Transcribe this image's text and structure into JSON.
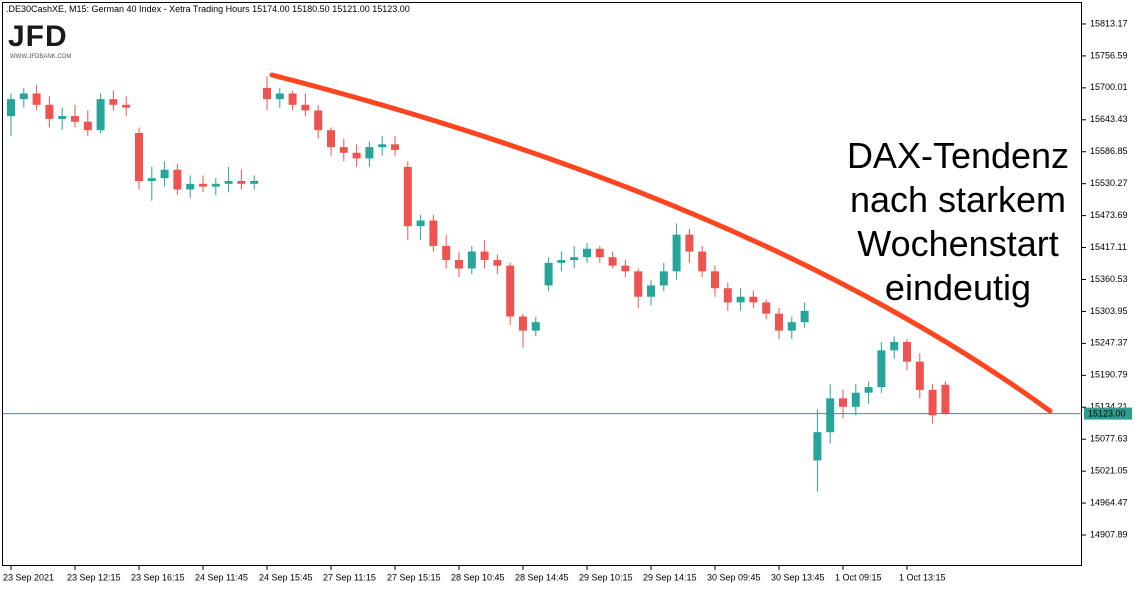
{
  "chart_data": {
    "type": "candlestick",
    "header": ".DE30CashXE, M15:  German 40 Index  - Xetra Trading Hours  15174.00 15180.50 15121.00 15123.00",
    "logo": "JFD",
    "logo_url": "WWW.JFDBANK.COM",
    "annotation": [
      "DAX-Tendenz",
      "nach starkem",
      "Wochenstart",
      "eindeutig"
    ],
    "up_color": "#26a69a",
    "down_color": "#ef5350",
    "ylim": [
      14853,
      15845
    ],
    "yticks": [
      15813.17,
      15756.59,
      15700.01,
      15643.43,
      15586.85,
      15530.27,
      15473.69,
      15417.11,
      15360.53,
      15303.95,
      15247.37,
      15190.79,
      15134.21,
      15077.63,
      15021.05,
      14964.47,
      14907.89
    ],
    "price_line": {
      "value": 15123,
      "label": "15123.00"
    },
    "categories": [
      "23 Sep 2021",
      null,
      null,
      null,
      null,
      "23 Sep 12:15",
      null,
      null,
      null,
      null,
      "23 Sep 16:15",
      null,
      null,
      null,
      null,
      "24 Sep 11:45",
      null,
      null,
      null,
      null,
      "24 Sep 15:45",
      null,
      null,
      null,
      null,
      "27 Sep 11:15",
      null,
      null,
      null,
      null,
      "27 Sep 15:15",
      null,
      null,
      null,
      null,
      "28 Sep 10:45",
      null,
      null,
      null,
      null,
      "28 Sep 14:45",
      null,
      null,
      null,
      null,
      "29 Sep 10:15",
      null,
      null,
      null,
      null,
      "29 Sep 14:15",
      null,
      null,
      null,
      null,
      "30 Sep 09:45",
      null,
      null,
      null,
      null,
      "30 Sep 13:45",
      null,
      null,
      null,
      null,
      "1 Oct 09:15",
      null,
      null,
      null,
      null,
      "1 Oct 13:15",
      null,
      null,
      null
    ],
    "candles": [
      [
        15650,
        15690,
        15615,
        15680
      ],
      [
        15680,
        15700,
        15665,
        15690
      ],
      [
        15690,
        15705,
        15660,
        15670
      ],
      [
        15670,
        15685,
        15630,
        15645
      ],
      [
        15645,
        15665,
        15625,
        15650
      ],
      [
        15650,
        15670,
        15630,
        15640
      ],
      [
        15640,
        15660,
        15615,
        15625
      ],
      [
        15625,
        15690,
        15620,
        15680
      ],
      [
        15680,
        15695,
        15660,
        15670
      ],
      [
        15670,
        15685,
        15650,
        15665
      ],
      [
        15620,
        15630,
        15520,
        15535
      ],
      [
        15535,
        15560,
        15500,
        15540
      ],
      [
        15540,
        15570,
        15525,
        15555
      ],
      [
        15555,
        15565,
        15510,
        15520
      ],
      [
        15520,
        15545,
        15505,
        15530
      ],
      [
        15530,
        15545,
        15515,
        15525
      ],
      [
        15525,
        15540,
        15510,
        15530
      ],
      [
        15530,
        15560,
        15515,
        15535
      ],
      [
        15535,
        15555,
        15520,
        15530
      ],
      [
        15530,
        15545,
        15520,
        15535
      ],
      [
        15700,
        15720,
        15660,
        15680
      ],
      [
        15680,
        15700,
        15665,
        15690
      ],
      [
        15690,
        15695,
        15660,
        15670
      ],
      [
        15670,
        15690,
        15650,
        15660
      ],
      [
        15660,
        15670,
        15610,
        15625
      ],
      [
        15625,
        15630,
        15580,
        15595
      ],
      [
        15595,
        15610,
        15570,
        15585
      ],
      [
        15585,
        15600,
        15560,
        15575
      ],
      [
        15575,
        15605,
        15560,
        15595
      ],
      [
        15595,
        15615,
        15580,
        15600
      ],
      [
        15600,
        15615,
        15580,
        15590
      ],
      [
        15560,
        15570,
        15430,
        15455
      ],
      [
        15455,
        15475,
        15430,
        15465
      ],
      [
        15465,
        15475,
        15410,
        15420
      ],
      [
        15420,
        15440,
        15380,
        15395
      ],
      [
        15395,
        15410,
        15365,
        15380
      ],
      [
        15380,
        15420,
        15370,
        15410
      ],
      [
        15410,
        15430,
        15380,
        15395
      ],
      [
        15395,
        15405,
        15370,
        15385
      ],
      [
        15385,
        15390,
        15280,
        15295
      ],
      [
        15295,
        15300,
        15240,
        15270
      ],
      [
        15270,
        15295,
        15260,
        15285
      ],
      [
        15350,
        15400,
        15340,
        15390
      ],
      [
        15390,
        15410,
        15375,
        15395
      ],
      [
        15395,
        15420,
        15380,
        15400
      ],
      [
        15400,
        15425,
        15390,
        15415
      ],
      [
        15415,
        15420,
        15390,
        15400
      ],
      [
        15400,
        15410,
        15380,
        15385
      ],
      [
        15385,
        15395,
        15365,
        15375
      ],
      [
        15375,
        15380,
        15310,
        15330
      ],
      [
        15330,
        15360,
        15315,
        15350
      ],
      [
        15350,
        15390,
        15340,
        15375
      ],
      [
        15375,
        15460,
        15360,
        15440
      ],
      [
        15440,
        15450,
        15390,
        15410
      ],
      [
        15410,
        15420,
        15365,
        15375
      ],
      [
        15375,
        15385,
        15330,
        15345
      ],
      [
        15345,
        15355,
        15305,
        15320
      ],
      [
        15320,
        15345,
        15305,
        15330
      ],
      [
        15330,
        15340,
        15310,
        15320
      ],
      [
        15320,
        15325,
        15290,
        15300
      ],
      [
        15300,
        15310,
        15255,
        15270
      ],
      [
        15270,
        15295,
        15255,
        15285
      ],
      [
        15285,
        15320,
        15275,
        15305
      ],
      [
        15040,
        15130,
        14985,
        15090
      ],
      [
        15090,
        15175,
        15070,
        15150
      ],
      [
        15150,
        15165,
        15115,
        15135
      ],
      [
        15135,
        15175,
        15120,
        15160
      ],
      [
        15160,
        15180,
        15140,
        15170
      ],
      [
        15170,
        15250,
        15160,
        15235
      ],
      [
        15235,
        15260,
        15220,
        15250
      ],
      [
        15250,
        15255,
        15200,
        15215
      ],
      [
        15215,
        15230,
        15150,
        15165
      ],
      [
        15165,
        15175,
        15105,
        15120
      ],
      [
        15174,
        15180.5,
        15121,
        15123
      ]
    ]
  }
}
